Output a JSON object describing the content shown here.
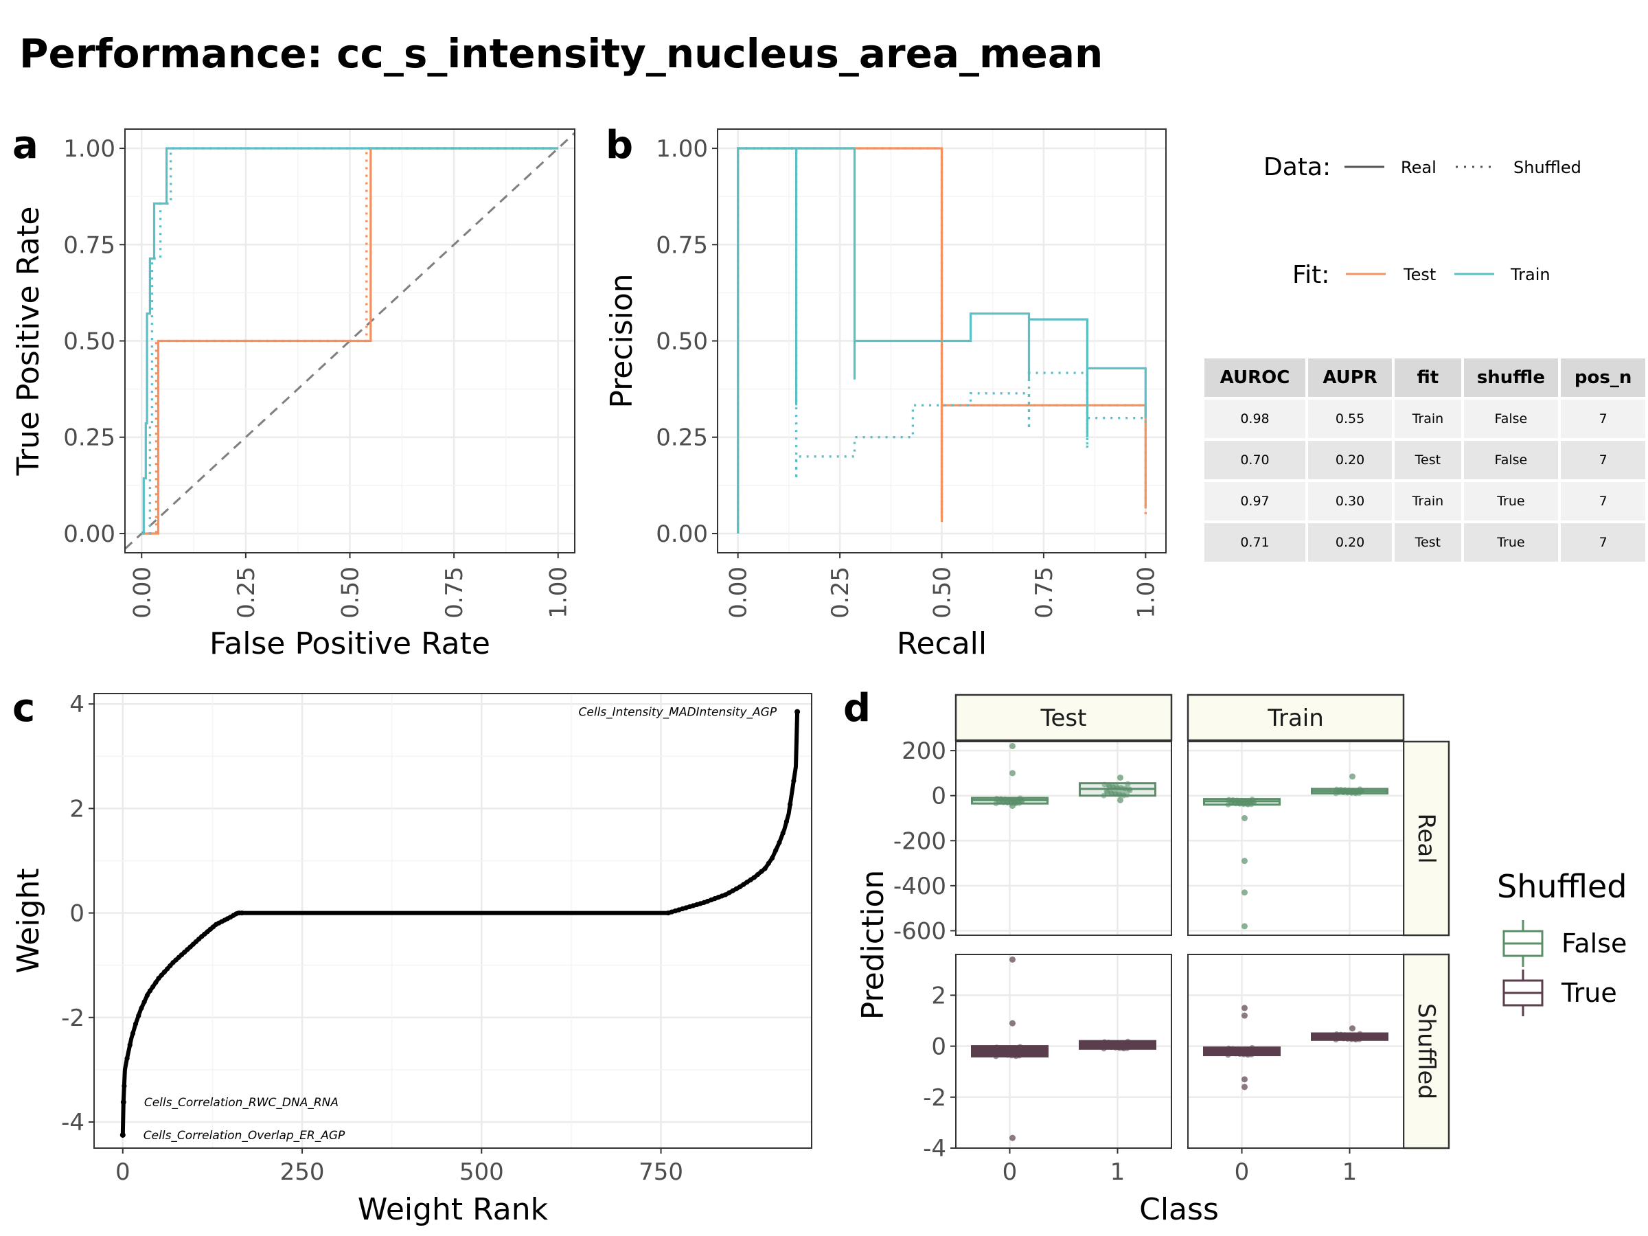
{
  "title": "Performance: cc_s_intensity_nucleus_area_mean",
  "panels": [
    "a",
    "b",
    "c",
    "d"
  ],
  "colors": {
    "test": "#F4915E",
    "train": "#5BBFC6",
    "false": "#5A8F6A",
    "true": "#5B3E4D",
    "grid": "#ebebeb",
    "diagonal": "#7f7f7f"
  },
  "legend": {
    "data_title": "Data:",
    "data_items": [
      "Real",
      "Shuffled"
    ],
    "fit_title": "Fit:",
    "fit_items": [
      "Test",
      "Train"
    ],
    "shuffled_title": "Shuffled",
    "shuffled_items": [
      "False",
      "True"
    ]
  },
  "table": {
    "headers": [
      "AUROC",
      "AUPR",
      "fit",
      "shuffle",
      "pos_n"
    ],
    "rows": [
      [
        "0.98",
        "0.55",
        "Train",
        "False",
        "7"
      ],
      [
        "0.70",
        "0.20",
        "Test",
        "False",
        "7"
      ],
      [
        "0.97",
        "0.30",
        "Train",
        "True",
        "7"
      ],
      [
        "0.71",
        "0.20",
        "Test",
        "True",
        "7"
      ]
    ]
  },
  "chart_data": [
    {
      "panel": "a",
      "type": "line",
      "xlabel": "False Positive Rate",
      "ylabel": "True Positive Rate",
      "xlim": [
        -0.04,
        1.04
      ],
      "ylim": [
        -0.05,
        1.05
      ],
      "xticks": [
        "0.00",
        "0.25",
        "0.50",
        "0.75",
        "1.00"
      ],
      "yticks": [
        "0.00",
        "0.25",
        "0.50",
        "0.75",
        "1.00"
      ],
      "grid": true,
      "series": [
        {
          "name": "Test Real",
          "points": [
            [
              0,
              0
            ],
            [
              0.04,
              0
            ],
            [
              0.04,
              0.5
            ],
            [
              0.55,
              0.5
            ],
            [
              0.55,
              1
            ],
            [
              1,
              1
            ]
          ]
        },
        {
          "name": "Test Shuffled",
          "points": [
            [
              0,
              0
            ],
            [
              0.035,
              0
            ],
            [
              0.035,
              0.5
            ],
            [
              0.54,
              0.5
            ],
            [
              0.54,
              1
            ],
            [
              1,
              1
            ]
          ]
        },
        {
          "name": "Train Real",
          "points": [
            [
              0,
              0
            ],
            [
              0.005,
              0
            ],
            [
              0.005,
              0.143
            ],
            [
              0.01,
              0.143
            ],
            [
              0.01,
              0.286
            ],
            [
              0.013,
              0.286
            ],
            [
              0.013,
              0.571
            ],
            [
              0.02,
              0.571
            ],
            [
              0.02,
              0.714
            ],
            [
              0.03,
              0.714
            ],
            [
              0.03,
              0.857
            ],
            [
              0.06,
              0.857
            ],
            [
              0.06,
              1
            ],
            [
              1,
              1
            ]
          ]
        },
        {
          "name": "Train Shuffled",
          "points": [
            [
              0,
              0
            ],
            [
              0.02,
              0
            ],
            [
              0.02,
              0.286
            ],
            [
              0.025,
              0.286
            ],
            [
              0.025,
              0.714
            ],
            [
              0.045,
              0.714
            ],
            [
              0.045,
              0.857
            ],
            [
              0.07,
              0.857
            ],
            [
              0.07,
              1
            ],
            [
              1,
              1
            ]
          ]
        }
      ]
    },
    {
      "panel": "b",
      "type": "line",
      "xlabel": "Recall",
      "ylabel": "Precision",
      "xlim": [
        -0.05,
        1.05
      ],
      "ylim": [
        -0.05,
        1.05
      ],
      "xticks": [
        "0.00",
        "0.25",
        "0.50",
        "0.75",
        "1.00"
      ],
      "yticks": [
        "0.00",
        "0.25",
        "0.50",
        "0.75",
        "1.00"
      ],
      "grid": true,
      "series": [
        {
          "name": "Test Real",
          "points": [
            [
              0,
              0
            ],
            [
              0,
              1
            ],
            [
              0.5,
              1
            ],
            [
              0.5,
              0.03
            ],
            [
              0.5,
              0.333
            ],
            [
              1,
              0.333
            ],
            [
              1,
              0.065
            ]
          ]
        },
        {
          "name": "Test Shuffled",
          "points": [
            [
              0,
              0
            ],
            [
              0,
              1
            ],
            [
              0.5,
              1
            ],
            [
              0.5,
              0.04
            ],
            [
              0.5,
              0.333
            ],
            [
              1,
              0.333
            ],
            [
              1,
              0.05
            ]
          ]
        },
        {
          "name": "Train Real",
          "points": [
            [
              0,
              0
            ],
            [
              0,
              1
            ],
            [
              0.143,
              1
            ],
            [
              0.143,
              0.333
            ],
            [
              0.143,
              1
            ],
            [
              0.286,
              1
            ],
            [
              0.286,
              0.4
            ],
            [
              0.286,
              0.5
            ],
            [
              0.571,
              0.5
            ],
            [
              0.571,
              0.571
            ],
            [
              0.714,
              0.571
            ],
            [
              0.714,
              0.4
            ],
            [
              0.714,
              0.556
            ],
            [
              0.857,
              0.556
            ],
            [
              0.857,
              0.25
            ],
            [
              0.857,
              0.429
            ],
            [
              1,
              0.429
            ],
            [
              1,
              0.3
            ]
          ]
        },
        {
          "name": "Train Shuffled",
          "points": [
            [
              0,
              0
            ],
            [
              0,
              1
            ],
            [
              0.143,
              1
            ],
            [
              0.143,
              0.14
            ],
            [
              0.143,
              0.2
            ],
            [
              0.286,
              0.2
            ],
            [
              0.286,
              0.25
            ],
            [
              0.429,
              0.25
            ],
            [
              0.429,
              0.333
            ],
            [
              0.571,
              0.333
            ],
            [
              0.571,
              0.364
            ],
            [
              0.714,
              0.364
            ],
            [
              0.714,
              0.27
            ],
            [
              0.714,
              0.417
            ],
            [
              0.857,
              0.417
            ],
            [
              0.857,
              0.22
            ],
            [
              0.857,
              0.3
            ],
            [
              1,
              0.3
            ],
            [
              1,
              0.28
            ]
          ]
        }
      ]
    },
    {
      "panel": "c",
      "type": "scatter",
      "xlabel": "Weight Rank",
      "ylabel": "Weight",
      "xlim": [
        -40,
        960
      ],
      "ylim": [
        -4.5,
        4.2
      ],
      "xticks": [
        0,
        250,
        500,
        750
      ],
      "yticks": [
        4,
        2,
        0,
        -2,
        -4
      ],
      "grid": true,
      "curve": [
        [
          0,
          -4.25
        ],
        [
          1,
          -3.62
        ],
        [
          3,
          -3.0
        ],
        [
          5,
          -2.85
        ],
        [
          8,
          -2.65
        ],
        [
          12,
          -2.4
        ],
        [
          18,
          -2.12
        ],
        [
          25,
          -1.85
        ],
        [
          35,
          -1.55
        ],
        [
          50,
          -1.25
        ],
        [
          70,
          -0.95
        ],
        [
          90,
          -0.7
        ],
        [
          110,
          -0.45
        ],
        [
          130,
          -0.22
        ],
        [
          150,
          -0.08
        ],
        [
          160,
          0
        ],
        [
          760,
          0
        ],
        [
          780,
          0.08
        ],
        [
          810,
          0.2
        ],
        [
          840,
          0.35
        ],
        [
          860,
          0.5
        ],
        [
          880,
          0.68
        ],
        [
          895,
          0.85
        ],
        [
          905,
          1.05
        ],
        [
          915,
          1.35
        ],
        [
          922,
          1.6
        ],
        [
          928,
          1.9
        ],
        [
          933,
          2.35
        ],
        [
          938,
          2.8
        ],
        [
          940,
          3.85
        ]
      ],
      "labels": [
        {
          "text": "Cells_Intensity_MADIntensity_AGP",
          "x": 940,
          "y": 3.85
        },
        {
          "text": "Cells_Correlation_RWC_DNA_RNA",
          "x": 1,
          "y": -3.62
        },
        {
          "text": "Cells_Correlation_Overlap_ER_AGP",
          "x": 0,
          "y": -4.25
        }
      ]
    },
    {
      "panel": "d",
      "type": "box",
      "xlabel": "Class",
      "ylabel": "Prediction",
      "categories": [
        "0",
        "1"
      ],
      "columns": [
        "Test",
        "Train"
      ],
      "rows": [
        "Real",
        "Shuffled"
      ],
      "row_ylim": {
        "Real": [
          -620,
          240
        ],
        "Shuffled": [
          -4,
          3.6
        ]
      },
      "row_yticks": {
        "Real": [
          "200",
          "0",
          "-200",
          "-400",
          "-600"
        ],
        "Shuffled": [
          "2",
          "0",
          "-2",
          "-4"
        ]
      },
      "boxes": [
        {
          "column": "Test",
          "row": "Real",
          "class": "0",
          "q1": -35,
          "median": -20,
          "q3": -10,
          "outliers": [
            220,
            100,
            -45
          ]
        },
        {
          "column": "Test",
          "row": "Real",
          "class": "1",
          "q1": 0,
          "median": 30,
          "q3": 55,
          "outliers": [
            80,
            -20
          ]
        },
        {
          "column": "Train",
          "row": "Real",
          "class": "0",
          "q1": -40,
          "median": -25,
          "q3": -15,
          "outliers": [
            -100,
            -290,
            -430,
            -580
          ]
        },
        {
          "column": "Train",
          "row": "Real",
          "class": "1",
          "q1": 10,
          "median": 20,
          "q3": 30,
          "outliers": [
            85
          ]
        },
        {
          "column": "Test",
          "row": "Shuffled",
          "class": "0",
          "q1": -0.4,
          "median": -0.2,
          "q3": 0.0,
          "outliers": [
            3.4,
            0.9,
            -3.6
          ]
        },
        {
          "column": "Test",
          "row": "Shuffled",
          "class": "1",
          "q1": -0.1,
          "median": 0.05,
          "q3": 0.2,
          "outliers": []
        },
        {
          "column": "Train",
          "row": "Shuffled",
          "class": "0",
          "q1": -0.35,
          "median": -0.2,
          "q3": -0.05,
          "outliers": [
            1.5,
            1.2,
            -1.3,
            -1.6
          ]
        },
        {
          "column": "Train",
          "row": "Shuffled",
          "class": "1",
          "q1": 0.25,
          "median": 0.35,
          "q3": 0.5,
          "outliers": [
            0.7
          ]
        }
      ]
    }
  ]
}
